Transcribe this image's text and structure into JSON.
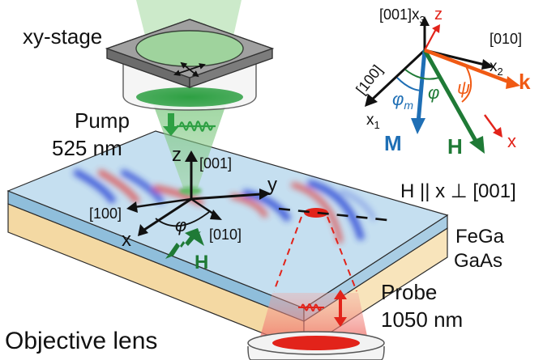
{
  "labels": {
    "xy_stage": "xy-stage",
    "pump_line1": "Pump",
    "pump_line2": "525 nm",
    "probe_line1": "Probe",
    "probe_line2": "1050 nm",
    "objective_lens": "Objective lens",
    "field_condition": "H || x ⊥ [001]",
    "fega": "FeGa",
    "gaas": "GaAs"
  },
  "sample_axes": {
    "z": "z",
    "z_dir": "[001]",
    "x": "x",
    "x_dir": "[100]",
    "y": "y",
    "y_dir": "[010]",
    "angle": "φ",
    "field": "H"
  },
  "inset_axes": {
    "dir_001": "[001]",
    "x3": "x",
    "x3_sub": "3",
    "z": "z",
    "dir_010": "[010]",
    "x2": "x",
    "x2_sub": "2",
    "dir_100": "[100]",
    "x1": "x",
    "x1_sub": "1",
    "psi": "ψ",
    "phi": "φ",
    "phi_m": "φ",
    "phi_m_sub": "m",
    "k": "k",
    "M": "M",
    "H": "H",
    "x_red": "x"
  },
  "colors": {
    "pump_green": "#2ea043",
    "probe_red": "#e2231a",
    "field_green": "#1f7a36",
    "magnetization_blue": "#1f6fb5",
    "wavevector_orange": "#f05a14",
    "film_blue": "#b8d6ea",
    "substrate_tan": "#f6ddab"
  },
  "icons": [
    "stage-arrows-icon",
    "pump-pulse-icon",
    "probe-pulse-icon",
    "double-arrow-icon"
  ]
}
